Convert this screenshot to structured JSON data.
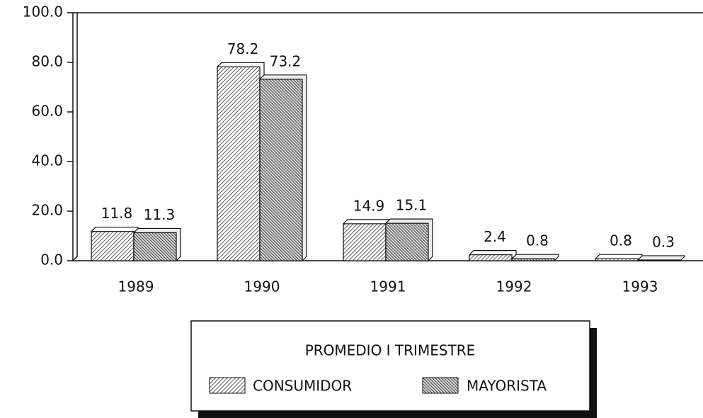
{
  "chart_data": {
    "type": "bar",
    "categories": [
      "1989",
      "1990",
      "1991",
      "1992",
      "1993"
    ],
    "series": [
      {
        "name": "CONSUMIDOR",
        "values": [
          11.8,
          78.2,
          14.9,
          2.4,
          0.8
        ]
      },
      {
        "name": "MAYORISTA",
        "values": [
          11.3,
          73.2,
          15.1,
          0.8,
          0.3
        ]
      }
    ],
    "ylim": [
      0,
      100
    ],
    "yticks": [
      {
        "value": 0,
        "label": "0.0"
      },
      {
        "value": 20,
        "label": "20.0"
      },
      {
        "value": 40,
        "label": "40.0"
      },
      {
        "value": 60,
        "label": "60.0"
      },
      {
        "value": 80,
        "label": "80.0"
      },
      {
        "value": 100,
        "label": "100.0"
      }
    ],
    "legend_title": "PROMEDIO I TRIMESTRE",
    "legend": "bottom"
  }
}
